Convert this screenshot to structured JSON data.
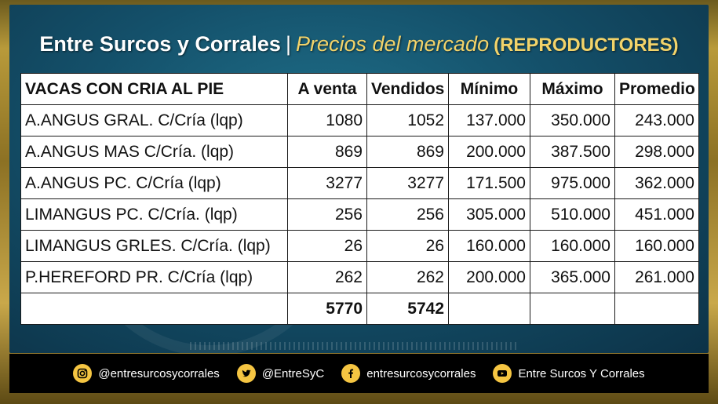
{
  "title": {
    "brand": "Entre Surcos y Corrales",
    "separator": "|",
    "subtitle": "Precios del mercado",
    "category": "(REPRODUCTORES)"
  },
  "table": {
    "headers": [
      "VACAS CON CRIA AL PIE",
      "A venta",
      "Vendidos",
      "Mínimo",
      "Máximo",
      "Promedio"
    ],
    "rows": [
      [
        "A.ANGUS GRAL. C/Cría (lqp)",
        "1080",
        "1052",
        "137.000",
        "350.000",
        "243.000"
      ],
      [
        "A.ANGUS MAS C/Cría. (lqp)",
        "869",
        "869",
        "200.000",
        "387.500",
        "298.000"
      ],
      [
        "A.ANGUS PC. C/Cría (lqp)",
        "3277",
        "3277",
        "171.500",
        "975.000",
        "362.000"
      ],
      [
        "LIMANGUS PC. C/Cría. (lqp)",
        "256",
        "256",
        "305.000",
        "510.000",
        "451.000"
      ],
      [
        "LIMANGUS GRLES. C/Cría. (lqp)",
        "26",
        "26",
        "160.000",
        "160.000",
        "160.000"
      ],
      [
        "P.HEREFORD PR. C/Cría (lqp)",
        "262",
        "262",
        "200.000",
        "365.000",
        "261.000"
      ]
    ],
    "totals": [
      "",
      "5770",
      "5742",
      "",
      "",
      ""
    ]
  },
  "footer": {
    "instagram": "@entresurcosycorrales",
    "twitter": "@EntreSyC",
    "facebook": "entresurcosycorrales",
    "youtube": "Entre Surcos Y Corrales"
  },
  "colors": {
    "accent_gold": "#f5c542",
    "panel_teal": "#14506a",
    "footer_bg": "#000000"
  },
  "icons": [
    "instagram-icon",
    "twitter-icon",
    "facebook-icon",
    "youtube-icon"
  ]
}
